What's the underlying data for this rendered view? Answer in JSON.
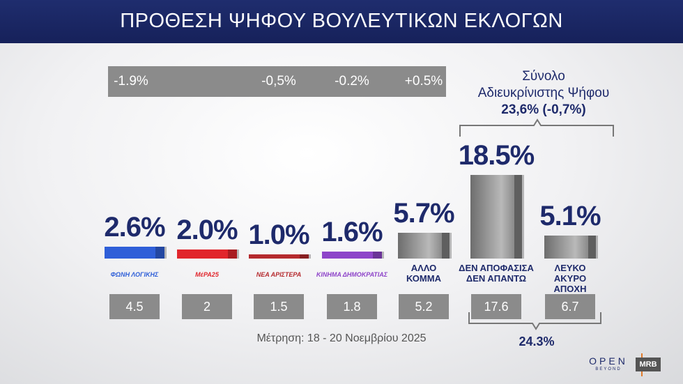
{
  "chart_data": {
    "type": "bar",
    "title": "ΠΡΟΘΕΣΗ ΨΗΦΟΥ ΒΟΥΛΕΥΤΙΚΩΝ ΕΚΛΟΓΩΝ",
    "categories": [
      "ΦΩΝΗ ΛΟΓΙΚΗΣ",
      "ΜέΡΑ25",
      "ΝΕΑ ΑΡΙΣΤΕΡΑ",
      "ΚΙΝΗΜΑ ΔΗΜΟΚΡΑΤΙΑΣ",
      "ΑΛΛΟ\nΚΟΜΜΑ",
      "ΔΕΝ ΑΠΟΦΑΣΙΣΑ\nΔΕΝ ΑΠΑΝΤΩ",
      "ΛΕΥΚΟ\nΑΚΥΡΟ\nΑΠΟΧΗ"
    ],
    "values": [
      2.6,
      2.0,
      1.0,
      1.6,
      5.7,
      18.5,
      5.1
    ],
    "value_labels": [
      "2.6%",
      "2.0%",
      "1.0%",
      "1.6%",
      "5.7%",
      "18.5%",
      "5.1%"
    ],
    "colors": [
      "#2f5fd8",
      "#e1262c",
      "#b52a2e",
      "#8e44c9",
      "#777777",
      "#8a8a8a",
      "#8a8a8a"
    ],
    "changes": [
      "-1.9%",
      null,
      "-0,5%",
      "-0.2%",
      "+0.5%"
    ],
    "previous": [
      4.5,
      2,
      1.5,
      1.8,
      5.2,
      17.6,
      6.7
    ],
    "summary_title": "Σύνολο\nΑδιευκρίνιστης Ψήφου",
    "summary_value": "23,6% (-0,7%)",
    "previous_total": "24.3%",
    "note": "Μέτρηση: 18 - 20 Νοεμβρίου 2025",
    "brand": "OPEN",
    "brand_sub": "BEYOND",
    "source": "MRB"
  }
}
